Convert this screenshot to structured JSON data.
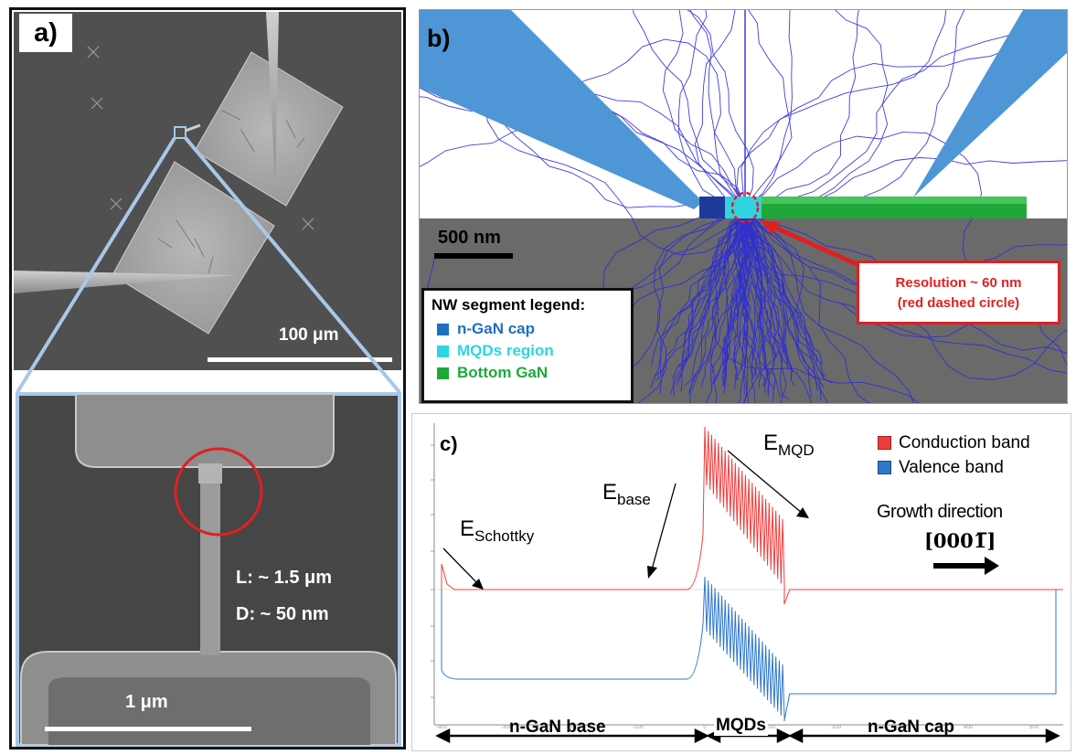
{
  "panel_a": {
    "label": "a)",
    "scale_top": "100 μm",
    "scale_bottom": "1 μm",
    "dim_length": "L: ~ 1.5 μm",
    "dim_diameter": "D: ~ 50 nm"
  },
  "panel_b": {
    "label": "b)",
    "scale": "500 nm",
    "callout_line1": "Resolution ~ 60 nm",
    "callout_line2": "(red dashed circle)",
    "legend_title": "NW segment legend:",
    "legend_items": [
      {
        "label": "n-GaN cap",
        "color": "#1f6fc1"
      },
      {
        "label": "MQDs region",
        "color": "#2fd4e0"
      },
      {
        "label": "Bottom GaN",
        "color": "#1fa83a"
      }
    ]
  },
  "panel_c": {
    "label": "c)",
    "legend_items": [
      {
        "label": "Conduction band",
        "color": "#f03c3c"
      },
      {
        "label": "Valence band",
        "color": "#2f78c8"
      }
    ],
    "e_mqd": {
      "main": "E",
      "sub": "MQD"
    },
    "e_base": {
      "main": "E",
      "sub": "base"
    },
    "e_schottky": {
      "main": "E",
      "sub": "Schottky"
    },
    "growth_label": "Growth direction",
    "growth_dir": "[0001̅]",
    "regions": [
      "n-GaN base",
      "MQDs",
      "n-GaN cap"
    ],
    "x_ticks": [
      "-400",
      "-300",
      "-200",
      "-100",
      "0",
      "100",
      "200",
      "300",
      "400",
      "500"
    ]
  },
  "colors": {
    "sem_bg": "#4a4a4a",
    "frame_blue": "#a8c8e8",
    "red_circle": "#e02020",
    "trajectory": "#2a2ad8",
    "substrate": "#6a6a6a",
    "tip_blue": "#4e96d6"
  }
}
